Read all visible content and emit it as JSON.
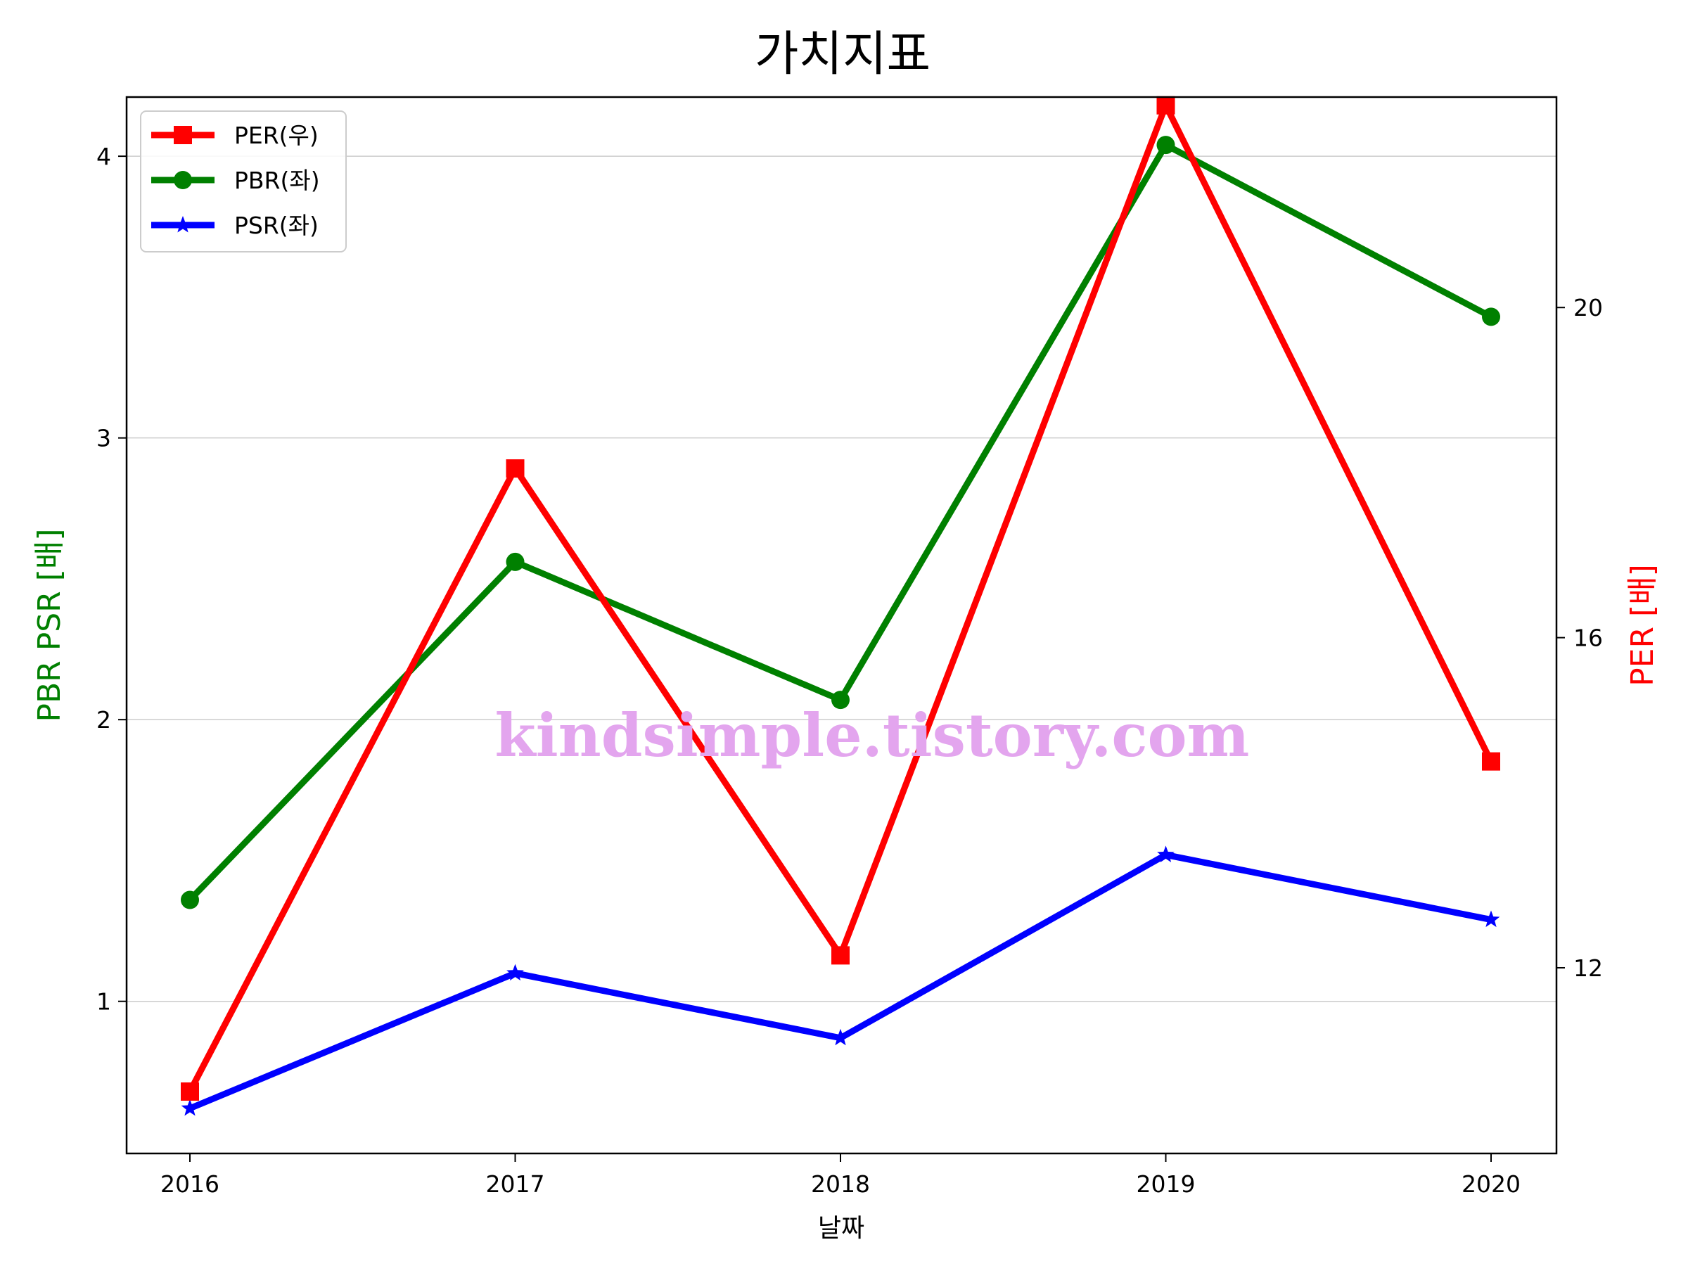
{
  "chart_data": {
    "type": "line",
    "title": "가치지표",
    "xlabel": "날짜",
    "ylabel_left": "PBR PSR [배]",
    "ylabel_right": "PER [배]",
    "categories": [
      "2016",
      "2017",
      "2018",
      "2019",
      "2020"
    ],
    "left_axis": {
      "ylim": [
        0.46,
        4.21
      ],
      "ticks": [
        "1",
        "2",
        "3",
        "4"
      ],
      "grid": true
    },
    "right_axis": {
      "ylim": [
        9.75,
        22.55
      ],
      "ticks": [
        "12",
        "16",
        "20"
      ]
    },
    "series": [
      {
        "name": "PER(우)",
        "axis": "right",
        "color": "#ff0000",
        "marker": "square",
        "values": [
          10.5,
          18.05,
          12.15,
          22.45,
          14.5
        ]
      },
      {
        "name": "PBR(좌)",
        "axis": "left",
        "color": "#008000",
        "marker": "circle",
        "values": [
          1.36,
          2.56,
          2.07,
          4.04,
          3.43
        ]
      },
      {
        "name": "PSR(좌)",
        "axis": "left",
        "color": "#0000ff",
        "marker": "star",
        "values": [
          0.62,
          1.1,
          0.87,
          1.52,
          1.29
        ]
      }
    ],
    "legend": "top-left",
    "left_label_color": "#008000",
    "right_label_color": "#ff0000",
    "watermark": "kindsimple.tistory.com"
  }
}
